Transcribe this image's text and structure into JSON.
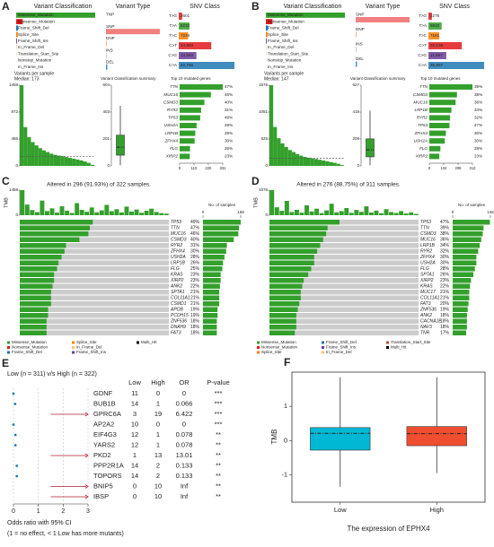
{
  "chart_data": [
    {
      "panel": "A",
      "type": "maf_summary",
      "charts": [
        {
          "type": "bar",
          "title": "Variant Classification",
          "categories": [
            "Missense_Mutation",
            "Nonsense_Mutation",
            "Frame_Shift_Del",
            "Splice_Site",
            "Frame_Shift_Ins",
            "In_Frame_Del",
            "Translation_Start_Site",
            "Nonstop_Mutation",
            "In_Frame_Ins"
          ],
          "values": [
            60000,
            5000,
            1500,
            1200,
            600,
            300,
            80,
            60,
            30
          ],
          "colors": [
            "#33a02c",
            "#e31a1c",
            "#1f78b4",
            "#ff7f00",
            "#6a3d9a",
            "#fdbf6f",
            "#b15928",
            "#a6cee3",
            "#fb9a99"
          ],
          "xlim": [
            0,
            60000
          ]
        },
        {
          "type": "bar",
          "title": "Variant Type",
          "categories": [
            "TNP",
            "SNP",
            "DNP",
            "INS",
            "DEL"
          ],
          "values": [
            50,
            99000,
            1500,
            700,
            2500
          ],
          "colors": [
            "#f4a582",
            "#f08080",
            "#f4a582",
            "#d6604d",
            "#4393c3"
          ],
          "xlim": [
            0,
            99000
          ]
        },
        {
          "type": "bar",
          "title": "SNV Class",
          "categories": [
            "T>G",
            "T>A",
            "T>C",
            "C>T",
            "C>G",
            "C>A"
          ],
          "values": [
            2601,
            8232,
            7234,
            24983,
            13563,
            42766
          ],
          "value_labels": [
            "2601",
            "8232",
            "7234",
            "24,983",
            "13,563",
            "42,766"
          ],
          "colors": [
            "#e31a1c",
            "#33a02c",
            "#ff7f00",
            "#e31a1c",
            "#6a3d9a",
            "#1f78b4"
          ],
          "xlim": [
            0,
            42766
          ]
        },
        {
          "type": "bar",
          "title": "Variants per sample",
          "subtitle": "Median: 173",
          "values": [
            1458,
            700,
            520,
            430,
            370,
            320,
            280,
            250,
            220,
            200,
            185,
            173,
            160,
            145,
            130,
            115,
            100,
            80,
            55,
            20
          ],
          "median": 173,
          "ylim": [
            0,
            1458
          ],
          "yticks": [
            0,
            486,
            972,
            1458
          ],
          "color": "#33a02c"
        },
        {
          "type": "box",
          "title": "Variant Classification summary",
          "boxes": [
            {
              "whisker_low": 5,
              "q1": 80,
              "median": 140,
              "q3": 230,
              "whisker_high": 450
            }
          ],
          "ylim": [
            0,
            604
          ],
          "yticks": [
            0,
            201,
            403,
            604
          ],
          "color": "#33a02c"
        },
        {
          "type": "bar",
          "title": "Top 10 mutated genes",
          "categories": [
            "TTN",
            "MUC16",
            "CSMD3",
            "RYR2",
            "TP53",
            "USH2A",
            "LRP1B",
            "ZFHX4",
            "FLG",
            "XIRP2"
          ],
          "values": [
            331,
            240,
            190,
            165,
            158,
            130,
            120,
            115,
            80,
            78
          ],
          "labels": [
            "47%",
            "46%",
            "40%",
            "31%",
            "49%",
            "28%",
            "26%",
            "30%",
            "25%",
            "23%"
          ],
          "xlim": [
            0,
            331
          ],
          "xticks": [
            0,
            110,
            220,
            331
          ],
          "color": "#33a02c"
        }
      ]
    },
    {
      "panel": "B",
      "type": "maf_summary",
      "charts": [
        {
          "type": "bar",
          "title": "Variant Classification",
          "categories": [
            "Missense_Mutation",
            "Nonsense_Mutation",
            "Frame_Shift_Del",
            "Splice_Site",
            "Frame_Shift_Ins",
            "In_Frame_Del",
            "Translation_Start_Site",
            "Nonstop_Mutation",
            "In_Frame_Ins"
          ],
          "values": [
            54000,
            4500,
            1400,
            1100,
            550,
            280,
            70,
            50,
            25
          ],
          "colors": [
            "#33a02c",
            "#e31a1c",
            "#1f78b4",
            "#ff7f00",
            "#6a3d9a",
            "#fdbf6f",
            "#b15928",
            "#a6cee3",
            "#fb9a99"
          ],
          "xlim": [
            0,
            54000
          ]
        },
        {
          "type": "bar",
          "title": "Variant Type",
          "categories": [
            "SNP",
            "DNP",
            "INS",
            "DEL"
          ],
          "values": [
            89000,
            1300,
            600,
            2200
          ],
          "colors": [
            "#f08080",
            "#f4a582",
            "#d6604d",
            "#4393c3"
          ],
          "xlim": [
            0,
            89000
          ]
        },
        {
          "type": "bar",
          "title": "SNV Class",
          "categories": [
            "T>G",
            "T>A",
            "T>C",
            "C>T",
            "C>G",
            "C>A"
          ],
          "values": [
            2275,
            8832,
            7161,
            22136,
            11857,
            36967
          ],
          "value_labels": [
            "2275",
            "8832",
            "7161",
            "22,136",
            "11,857",
            "36,967"
          ],
          "colors": [
            "#e31a1c",
            "#33a02c",
            "#ff7f00",
            "#e31a1c",
            "#6a3d9a",
            "#1f78b4"
          ],
          "xlim": [
            0,
            36967
          ]
        },
        {
          "type": "bar",
          "title": "Variants per sample",
          "subtitle": "Median: 147",
          "values": [
            1576,
            760,
            540,
            440,
            370,
            310,
            270,
            230,
            200,
            175,
            160,
            147,
            135,
            120,
            105,
            90,
            75,
            60,
            40,
            15
          ],
          "median": 147,
          "ylim": [
            0,
            1576
          ],
          "yticks": [
            0,
            525,
            1051,
            1576
          ],
          "color": "#33a02c"
        },
        {
          "type": "box",
          "title": "Variant Classification summary",
          "boxes": [
            {
              "whisker_low": 4,
              "q1": 70,
              "median": 125,
              "q3": 210,
              "whisker_high": 430
            }
          ],
          "ylim": [
            0,
            627
          ],
          "yticks": [
            0,
            209,
            418,
            627
          ],
          "color": "#33a02c"
        },
        {
          "type": "bar",
          "title": "Top 10 mutated genes",
          "categories": [
            "TTN",
            "CSMD3",
            "MUC16",
            "LRP1B",
            "RYR2",
            "TP53",
            "ZFHX4",
            "USH2A",
            "FLG",
            "XIRP2"
          ],
          "values": [
            312,
            200,
            190,
            160,
            150,
            146,
            120,
            112,
            80,
            72
          ],
          "labels": [
            "39%",
            "38%",
            "36%",
            "34%",
            "32%",
            "47%",
            "30%",
            "30%",
            "28%",
            "23%"
          ],
          "xlim": [
            0,
            312
          ],
          "xticks": [
            0,
            104,
            208,
            312
          ],
          "color": "#33a02c"
        }
      ]
    },
    {
      "panel": "C",
      "type": "oncoplot",
      "title": "Altered in 296 (91.93%) of 322 samples.",
      "tmb": {
        "label": "TMB",
        "ylim": [
          0,
          1458
        ],
        "yticks": [
          0,
          1458
        ],
        "values": [
          1458,
          620,
          300,
          180,
          850,
          240,
          400,
          150,
          520,
          260,
          130,
          700,
          310,
          200,
          450,
          170,
          280,
          600,
          230,
          350,
          160,
          500,
          210,
          330,
          140,
          260,
          380,
          190,
          120,
          90
        ]
      },
      "genes": [
        "TP53",
        "TTN",
        "MUC16",
        "CSMD3",
        "RYR2",
        "ZFHX4",
        "USH2A",
        "LRP1B",
        "FLG",
        "KRAS",
        "XIRP2",
        "ANK2",
        "SPTA1",
        "COL11A1",
        "CSMD1",
        "APOB",
        "PCDH15",
        "ZNF536",
        "DNAH9",
        "FAT3"
      ],
      "values": [
        49,
        47,
        46,
        40,
        31,
        30,
        28,
        26,
        25,
        23,
        23,
        22,
        21,
        21,
        21,
        19,
        19,
        18,
        18,
        18
      ],
      "value_labels": [
        "49%",
        "47%",
        "46%",
        "40%",
        "31%",
        "30%",
        "28%",
        "26%",
        "25%",
        "23%",
        "23%",
        "22%",
        "21%",
        "21%",
        "21%",
        "19%",
        "19%",
        "18%",
        "18%",
        "18%"
      ],
      "xlim": [
        0,
        100
      ],
      "samples": {
        "title": "No. of samples",
        "xlim": [
          0,
          158
        ],
        "xticks": [
          0,
          158
        ],
        "values": [
          158,
          151,
          148,
          129,
          100,
          97,
          90,
          84,
          81,
          74,
          74,
          71,
          68,
          68,
          68,
          61,
          61,
          58,
          58,
          58
        ]
      },
      "legend": {
        "names": [
          "Missense_Mutation",
          "Nonsense_Mutation",
          "Frame_Shift_Del",
          "Splice_Site",
          "In_Frame_Del",
          "Frame_Shift_Ins",
          "Multi_Hit"
        ],
        "colors": [
          "#33a02c",
          "#e31a1c",
          "#1f78b4",
          "#ff7f00",
          "#fdbf6f",
          "#6a3d9a",
          "#000000"
        ]
      },
      "color": "#33a02c",
      "background": "#cccccc"
    },
    {
      "panel": "D",
      "type": "oncoplot",
      "title": "Altered in 276 (88.75%) of 311 samples.",
      "tmb": {
        "label": "TMB",
        "ylim": [
          0,
          1576
        ],
        "yticks": [
          0,
          1576
        ],
        "values": [
          1576,
          500,
          280,
          900,
          200,
          340,
          160,
          620,
          240,
          410,
          130,
          300,
          720,
          180,
          260,
          450,
          150,
          330,
          210,
          560,
          170,
          290,
          120,
          380,
          200,
          140,
          260,
          110,
          180,
          80
        ]
      },
      "genes": [
        "TP53",
        "TTN",
        "CSMD3",
        "MUC16",
        "LRP1B",
        "RYR2",
        "ZFHX4",
        "USH2A",
        "FLG",
        "SPTA1",
        "XIRP2",
        "KRAS",
        "MUC17",
        "COL11A1",
        "FAT3",
        "ZNF536",
        "ANK2",
        "CACNA1E",
        "NAV3",
        "TNR"
      ],
      "values": [
        47,
        39,
        38,
        36,
        34,
        32,
        30,
        30,
        28,
        26,
        23,
        22,
        21,
        21,
        20,
        19,
        18,
        18,
        18,
        17
      ],
      "value_labels": [
        "47%",
        "39%",
        "38%",
        "36%",
        "34%",
        "32%",
        "30%",
        "30%",
        "28%",
        "26%",
        "23%",
        "22%",
        "21%",
        "21%",
        "20%",
        "19%",
        "18%",
        "18%",
        "18%",
        "17%"
      ],
      "xlim": [
        0,
        100
      ],
      "samples": {
        "title": "No. of samples",
        "xlim": [
          0,
          148
        ],
        "xticks": [
          0,
          148
        ],
        "values": [
          146,
          121,
          118,
          112,
          106,
          100,
          93,
          93,
          87,
          81,
          72,
          68,
          65,
          65,
          62,
          59,
          56,
          56,
          56,
          53
        ]
      },
      "legend": {
        "names": [
          "Missense_Mutation",
          "Nonsense_Mutation",
          "Splice_Site",
          "Frame_Shift_Del",
          "Frame_Shift_Ins",
          "In_Frame_Del",
          "Translation_Start_Site",
          "Multi_Hit"
        ],
        "colors": [
          "#33a02c",
          "#e31a1c",
          "#ff7f00",
          "#1f78b4",
          "#6a3d9a",
          "#fdbf6f",
          "#b15928",
          "#000000"
        ]
      },
      "color": "#33a02c",
      "background": "#cccccc"
    },
    {
      "panel": "E",
      "type": "forest",
      "title": "Low (n = 311) v/s High (n = 322)",
      "columns": [
        "Low",
        "High",
        "OR",
        "P-value"
      ],
      "rows": [
        [
          "GDNF",
          11,
          0,
          0,
          "***"
        ],
        [
          "BUB1B",
          14,
          1,
          0.066,
          "***"
        ],
        [
          "GPRC6A",
          3,
          19,
          6.422,
          "***"
        ],
        [
          "AP2A2",
          10,
          0,
          0,
          "***"
        ],
        [
          "EIF4G3",
          12,
          1,
          0.078,
          "**"
        ],
        [
          "YARS2",
          12,
          1,
          0.078,
          "**"
        ],
        [
          "PKD2",
          1,
          13,
          13.01,
          "**"
        ],
        [
          "PPP2R1A",
          14,
          2,
          0.133,
          "**"
        ],
        [
          "TOPORS",
          14,
          2,
          0.133,
          "**"
        ],
        [
          "BNIP5",
          0,
          10,
          "Inf",
          "**"
        ],
        [
          "IBSP",
          0,
          10,
          "Inf",
          "**"
        ]
      ],
      "xlim": [
        0,
        3
      ],
      "xticks": [
        0,
        1,
        2,
        3
      ],
      "xlabel": "Odds ratio with 95% CI",
      "note": "(1 = no effect, < 1 Low has more mutants)",
      "color": "#1f78b4",
      "arrow_color": "#b2182b"
    },
    {
      "panel": "F",
      "type": "box",
      "categories": [
        "Low",
        "High"
      ],
      "boxes": [
        {
          "whisker_low": -1.35,
          "q1": -0.28,
          "median": 0.21,
          "q3": 0.38,
          "whisker_high": 1.85
        },
        {
          "whisker_low": -0.95,
          "q1": -0.15,
          "median": 0.2,
          "q3": 0.41,
          "whisker_high": 1.85
        }
      ],
      "colors": [
        "#00b8d4",
        "#f04e30"
      ],
      "ylim": [
        -1.8,
        2
      ],
      "yticks": [
        -1,
        0,
        1
      ],
      "ylabel": "TMB",
      "xlabel": "The expression of EPHX4"
    }
  ]
}
